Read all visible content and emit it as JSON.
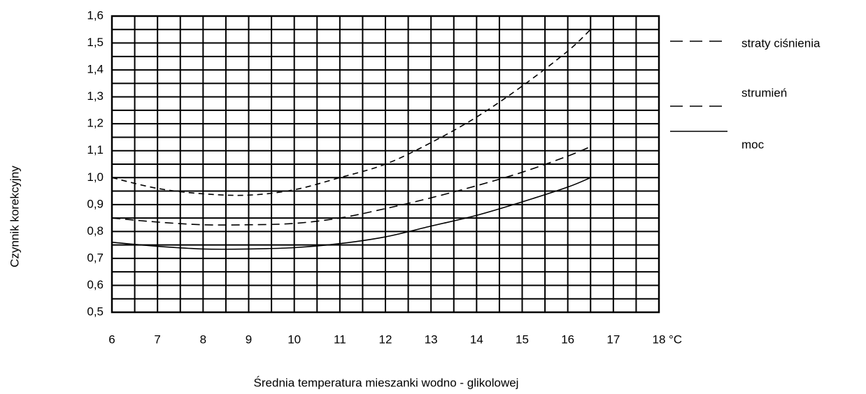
{
  "chart_data": {
    "type": "line",
    "x_label": "Średnia temperatura mieszanki wodno - glikolowej",
    "y_label": "Czynnik korekcyjny",
    "x_unit": "°C",
    "x": [
      6,
      7,
      8,
      9,
      10,
      11,
      12,
      13,
      14,
      15,
      16,
      16.5
    ],
    "series": [
      {
        "name": "straty ciśnienia",
        "color": "#000000",
        "dash": "8 6",
        "values": [
          1.0,
          0.96,
          0.94,
          0.935,
          0.955,
          1.0,
          1.05,
          1.13,
          1.225,
          1.34,
          1.47,
          1.55
        ]
      },
      {
        "name": "strumień",
        "color": "#000000",
        "dash": "12 7",
        "values": [
          0.85,
          0.835,
          0.825,
          0.825,
          0.83,
          0.85,
          0.885,
          0.925,
          0.97,
          1.02,
          1.08,
          1.115
        ]
      },
      {
        "name": "moc",
        "color": "#000000",
        "dash": "none",
        "values": [
          0.76,
          0.745,
          0.735,
          0.735,
          0.74,
          0.755,
          0.78,
          0.82,
          0.86,
          0.91,
          0.965,
          1.0
        ]
      }
    ],
    "xlim": [
      6,
      18
    ],
    "ylim": [
      0.5,
      1.6
    ],
    "xticks": [
      6,
      7,
      8,
      9,
      10,
      11,
      12,
      13,
      14,
      15,
      16,
      17,
      18
    ],
    "yticks": [
      {
        "value": 0.5,
        "label": "0,5"
      },
      {
        "value": 0.6,
        "label": "0,6"
      },
      {
        "value": 0.7,
        "label": "0,7"
      },
      {
        "value": 0.8,
        "label": "0,8"
      },
      {
        "value": 0.9,
        "label": "0,9"
      },
      {
        "value": 1.0,
        "label": "1,0"
      },
      {
        "value": 1.1,
        "label": "1,1"
      },
      {
        "value": 1.2,
        "label": "1,2"
      },
      {
        "value": 1.3,
        "label": "1,3"
      },
      {
        "value": 1.4,
        "label": "1,4"
      },
      {
        "value": 1.5,
        "label": "1,5"
      },
      {
        "value": 1.6,
        "label": "1,6"
      }
    ],
    "minor_xticks": [
      6.5,
      7.5,
      8.5,
      9.5,
      10.5,
      11.5,
      12.5,
      13.5,
      14.5,
      15.5,
      16.5,
      17.5
    ],
    "minor_yticks": [
      0.55,
      0.65,
      0.75,
      0.85,
      0.95,
      1.05,
      1.15,
      1.25,
      1.35,
      1.45,
      1.55
    ],
    "grid": true,
    "legend": "right"
  }
}
